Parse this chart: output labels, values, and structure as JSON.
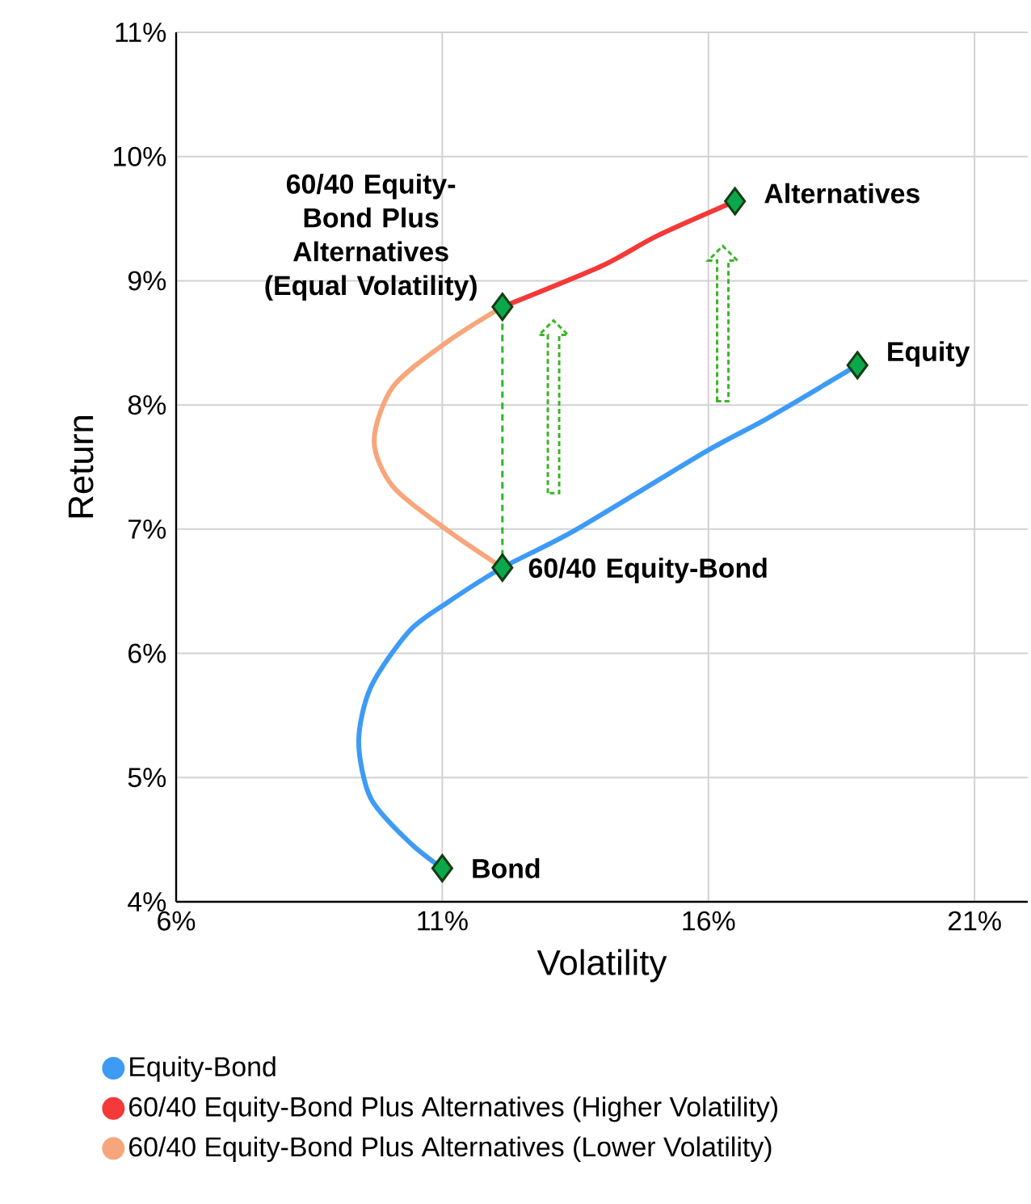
{
  "chart_data": {
    "type": "line",
    "xlabel": "Volatility",
    "ylabel": "Return",
    "xlim": [
      6,
      22
    ],
    "ylim": [
      4,
      11
    ],
    "xticks": [
      {
        "value": 6,
        "label": "6%"
      },
      {
        "value": 11,
        "label": "11%"
      },
      {
        "value": 16,
        "label": "16%"
      },
      {
        "value": 21,
        "label": "21%"
      }
    ],
    "yticks": [
      {
        "value": 4,
        "label": "4%"
      },
      {
        "value": 5,
        "label": "5%"
      },
      {
        "value": 6,
        "label": "6%"
      },
      {
        "value": 7,
        "label": "7%"
      },
      {
        "value": 8,
        "label": "8%"
      },
      {
        "value": 9,
        "label": "9%"
      },
      {
        "value": 10,
        "label": "10%"
      },
      {
        "value": 11,
        "label": "11%"
      }
    ],
    "grid": true,
    "legend": "bottom",
    "series": [
      {
        "line_style": "dashed",
        "color": "#2db52d",
        "x": [
          12.13,
          12.13
        ],
        "values": [
          6.69,
          8.79
        ]
      },
      {
        "name": "Equity-Bond",
        "color": "#3d9bf5",
        "x": [
          11.0,
          10.38,
          9.66,
          9.43,
          9.66,
          10.38,
          11.1,
          12.13,
          13.49,
          15.93,
          17.1,
          18.8
        ],
        "values": [
          4.27,
          4.48,
          4.83,
          5.29,
          5.73,
          6.18,
          6.41,
          6.69,
          6.99,
          7.62,
          7.89,
          8.32
        ]
      },
      {
        "name": "60/40 Equity-Bond Plus Alternatives (Higher Volatility)",
        "color": "#f53838",
        "x": [
          12.13,
          14.0,
          15.03,
          16.5
        ],
        "values": [
          8.79,
          9.12,
          9.36,
          9.64
        ]
      },
      {
        "name": "60/40 Equity-Bond Plus Alternatives (Lower Volatility)",
        "color": "#f7a67c",
        "x": [
          12.13,
          11.1,
          10.08,
          9.72,
          10.08,
          11.1,
          12.13
        ],
        "values": [
          6.69,
          6.99,
          7.34,
          7.71,
          8.15,
          8.51,
          8.79
        ]
      },
      {
        "type": "scatter",
        "marker": "diamond",
        "color": "#0aa84a",
        "x": [
          11.0,
          12.13,
          18.8,
          16.5,
          12.13
        ],
        "values": [
          4.27,
          6.69,
          8.32,
          9.64,
          8.79
        ]
      }
    ],
    "annotations": [
      {
        "text": "60/40 Equity-Bond Plus Alternatives (Equal Volatility)",
        "x": 12.13,
        "y": 8.79
      },
      {
        "text": "Alternatives",
        "x": 16.5,
        "y": 9.64
      },
      {
        "text": "Equity",
        "x": 18.8,
        "y": 8.32
      },
      {
        "text": "60/40 Equity-Bond",
        "x": 12.13,
        "y": 6.69
      },
      {
        "text": "Bond",
        "x": 11.0,
        "y": 4.27
      }
    ]
  }
}
